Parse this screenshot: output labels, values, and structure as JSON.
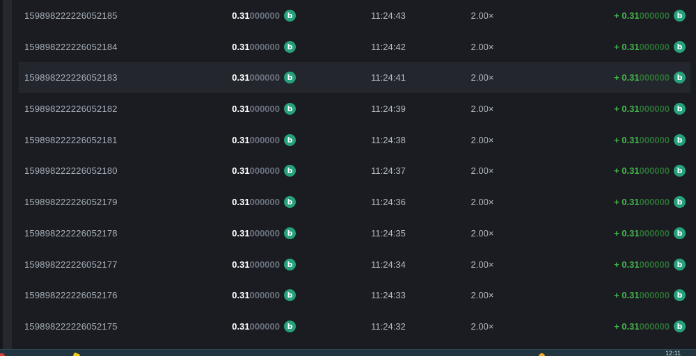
{
  "colors": {
    "background": "#1a1c22",
    "highlight_row": "#23262d",
    "coin": "#26a17b",
    "payout_bright": "#45b24b",
    "payout_dim": "#2d7134",
    "taskbar": "#20353f"
  },
  "bets": {
    "coin_symbol": "b",
    "rows": [
      {
        "id": "159898222226052185",
        "bet": "0.31",
        "bet_zeros": "000000",
        "time": "11:24:43",
        "multiplier": "2.00×",
        "payout": "+ 0.31",
        "payout_zeros": "000000",
        "highlighted": false
      },
      {
        "id": "159898222226052184",
        "bet": "0.31",
        "bet_zeros": "000000",
        "time": "11:24:42",
        "multiplier": "2.00×",
        "payout": "+ 0.31",
        "payout_zeros": "000000",
        "highlighted": false
      },
      {
        "id": "159898222226052183",
        "bet": "0.31",
        "bet_zeros": "000000",
        "time": "11:24:41",
        "multiplier": "2.00×",
        "payout": "+ 0.31",
        "payout_zeros": "000000",
        "highlighted": true
      },
      {
        "id": "159898222226052182",
        "bet": "0.31",
        "bet_zeros": "000000",
        "time": "11:24:39",
        "multiplier": "2.00×",
        "payout": "+ 0.31",
        "payout_zeros": "000000",
        "highlighted": false
      },
      {
        "id": "159898222226052181",
        "bet": "0.31",
        "bet_zeros": "000000",
        "time": "11:24:38",
        "multiplier": "2.00×",
        "payout": "+ 0.31",
        "payout_zeros": "000000",
        "highlighted": false
      },
      {
        "id": "159898222226052180",
        "bet": "0.31",
        "bet_zeros": "000000",
        "time": "11:24:37",
        "multiplier": "2.00×",
        "payout": "+ 0.31",
        "payout_zeros": "000000",
        "highlighted": false
      },
      {
        "id": "159898222226052179",
        "bet": "0.31",
        "bet_zeros": "000000",
        "time": "11:24:36",
        "multiplier": "2.00×",
        "payout": "+ 0.31",
        "payout_zeros": "000000",
        "highlighted": false
      },
      {
        "id": "159898222226052178",
        "bet": "0.31",
        "bet_zeros": "000000",
        "time": "11:24:35",
        "multiplier": "2.00×",
        "payout": "+ 0.31",
        "payout_zeros": "000000",
        "highlighted": false
      },
      {
        "id": "159898222226052177",
        "bet": "0.31",
        "bet_zeros": "000000",
        "time": "11:24:34",
        "multiplier": "2.00×",
        "payout": "+ 0.31",
        "payout_zeros": "000000",
        "highlighted": false
      },
      {
        "id": "159898222226052176",
        "bet": "0.31",
        "bet_zeros": "000000",
        "time": "11:24:33",
        "multiplier": "2.00×",
        "payout": "+ 0.31",
        "payout_zeros": "000000",
        "highlighted": false
      },
      {
        "id": "159898222226052175",
        "bet": "0.31",
        "bet_zeros": "000000",
        "time": "11:24:32",
        "multiplier": "2.00×",
        "payout": "+ 0.31",
        "payout_zeros": "000000",
        "highlighted": false
      }
    ]
  },
  "taskbar": {
    "clock": "12:11"
  }
}
